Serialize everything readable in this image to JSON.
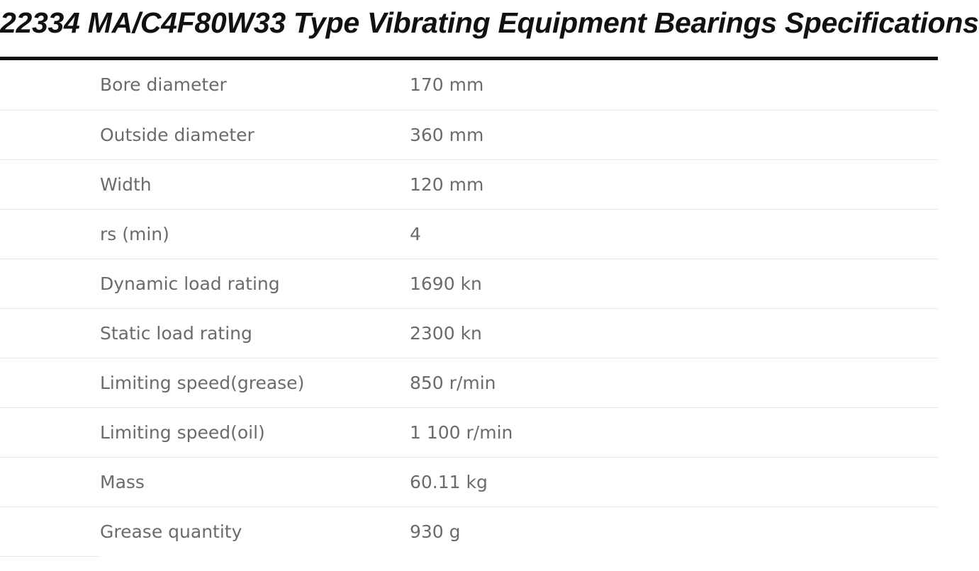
{
  "title": "22334 MA/C4F80W33 Type Vibrating Equipment Bearings Specifications",
  "specs": [
    {
      "label": "Bore diameter",
      "value": "170 mm"
    },
    {
      "label": "Outside diameter",
      "value": "360 mm"
    },
    {
      "label": "Width",
      "value": "120 mm"
    },
    {
      "label": "rs (min)",
      "value": "4"
    },
    {
      "label": "Dynamic load rating",
      "value": "1690 kn"
    },
    {
      "label": "Static load rating",
      "value": "2300 kn"
    },
    {
      "label": "Limiting speed(grease)",
      "value": "850 r/min"
    },
    {
      "label": "Limiting speed(oil)",
      "value": "1 100 r/min"
    },
    {
      "label": "Mass",
      "value": "60.11 kg"
    },
    {
      "label": "Grease quantity",
      "value": "930 g"
    }
  ],
  "colors": {
    "title": "#111111",
    "text": "#6b6b6b",
    "divider": "#e6e6e6",
    "background": "#ffffff"
  }
}
